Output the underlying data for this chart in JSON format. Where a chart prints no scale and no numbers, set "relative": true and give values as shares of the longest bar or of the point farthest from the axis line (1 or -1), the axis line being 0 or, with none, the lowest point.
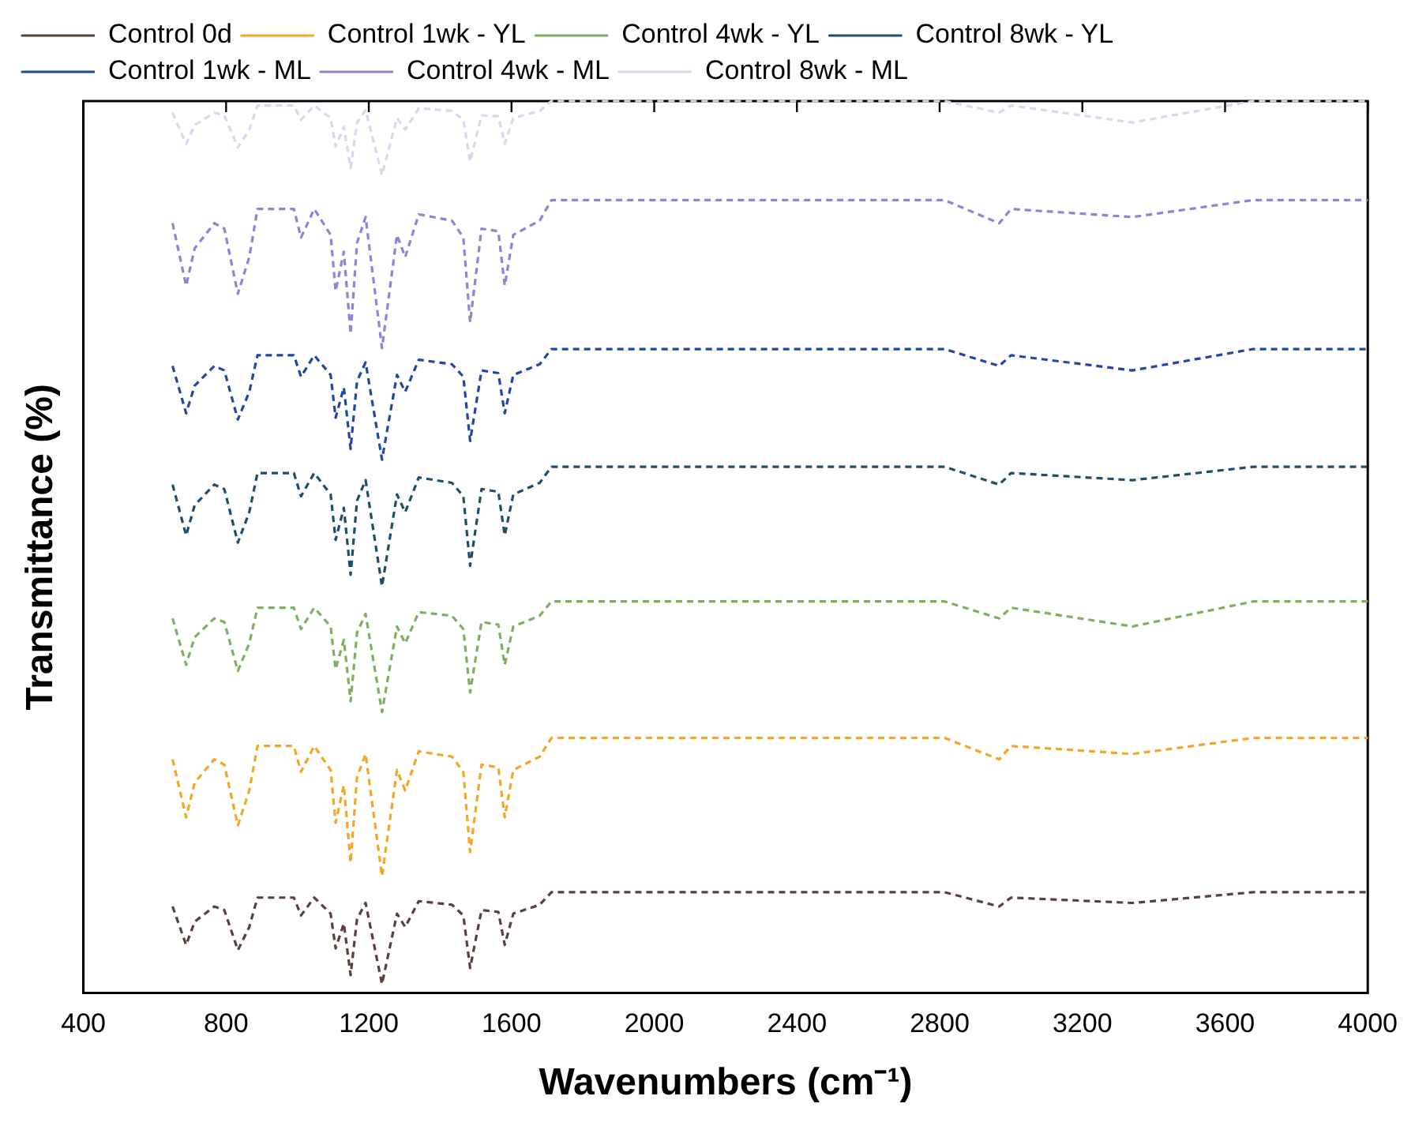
{
  "chart_data": {
    "type": "line",
    "xlabel": "Wavenumbers (cm⁻¹)",
    "ylabel": "Transmittance (%)",
    "relative": true,
    "legend": "top left",
    "line_style": "dashed",
    "marker": "none",
    "xlim": [
      400,
      4000
    ],
    "xticks": [
      400,
      800,
      1200,
      1600,
      2000,
      2400,
      2800,
      3200,
      3600,
      4000
    ],
    "x": [
      650,
      688,
      712,
      767,
      795,
      833,
      865,
      888,
      990,
      1010,
      1047,
      1093,
      1107,
      1130,
      1149,
      1167,
      1191,
      1237,
      1279,
      1302,
      1340,
      1433,
      1465,
      1484,
      1516,
      1563,
      1581,
      1605,
      1679,
      1712,
      1800,
      2400,
      2814,
      2967,
      3000,
      3340,
      3679,
      4000
    ],
    "series": [
      {
        "name": "Control 0d",
        "color": "#5a3f3a",
        "values": [
          0.097,
          0.054,
          0.08,
          0.097,
          0.093,
          0.048,
          0.074,
          0.107,
          0.107,
          0.087,
          0.107,
          0.089,
          0.05,
          0.078,
          0.02,
          0.083,
          0.101,
          0.01,
          0.089,
          0.074,
          0.103,
          0.099,
          0.087,
          0.028,
          0.093,
          0.091,
          0.054,
          0.089,
          0.099,
          0.113,
          0.113,
          0.113,
          0.113,
          0.097,
          0.107,
          0.101,
          0.113,
          0.113
        ]
      },
      {
        "name": "Control 1wk - YL",
        "color": "#f5a623",
        "values": [
          0.262,
          0.197,
          0.236,
          0.262,
          0.256,
          0.188,
          0.227,
          0.277,
          0.277,
          0.248,
          0.277,
          0.25,
          0.191,
          0.233,
          0.146,
          0.242,
          0.268,
          0.131,
          0.25,
          0.227,
          0.271,
          0.265,
          0.248,
          0.158,
          0.256,
          0.253,
          0.197,
          0.25,
          0.265,
          0.286,
          0.286,
          0.286,
          0.286,
          0.262,
          0.277,
          0.268,
          0.286,
          0.286
        ]
      },
      {
        "name": "Control 4wk - YL",
        "color": "#7fae5e",
        "values": [
          0.42,
          0.368,
          0.399,
          0.42,
          0.416,
          0.361,
          0.392,
          0.432,
          0.432,
          0.408,
          0.432,
          0.411,
          0.363,
          0.396,
          0.327,
          0.404,
          0.425,
          0.315,
          0.411,
          0.392,
          0.427,
          0.423,
          0.408,
          0.337,
          0.416,
          0.413,
          0.368,
          0.411,
          0.423,
          0.439,
          0.439,
          0.439,
          0.439,
          0.42,
          0.432,
          0.411,
          0.439,
          0.439
        ]
      },
      {
        "name": "Control 8wk - YL",
        "color": "#1f4e6b",
        "values": [
          0.57,
          0.513,
          0.547,
          0.57,
          0.565,
          0.505,
          0.539,
          0.583,
          0.583,
          0.557,
          0.583,
          0.559,
          0.508,
          0.544,
          0.469,
          0.552,
          0.575,
          0.456,
          0.559,
          0.539,
          0.578,
          0.572,
          0.557,
          0.479,
          0.565,
          0.562,
          0.513,
          0.559,
          0.572,
          0.59,
          0.59,
          0.59,
          0.59,
          0.57,
          0.583,
          0.575,
          0.59,
          0.59
        ]
      },
      {
        "name": "Control 1wk - ML",
        "color": "#1f47a3",
        "values": [
          0.703,
          0.65,
          0.681,
          0.703,
          0.698,
          0.643,
          0.674,
          0.715,
          0.715,
          0.691,
          0.715,
          0.693,
          0.645,
          0.679,
          0.61,
          0.686,
          0.707,
          0.598,
          0.693,
          0.674,
          0.71,
          0.705,
          0.691,
          0.619,
          0.698,
          0.695,
          0.65,
          0.693,
          0.705,
          0.722,
          0.722,
          0.722,
          0.722,
          0.703,
          0.715,
          0.698,
          0.722,
          0.722
        ]
      },
      {
        "name": "Control 4wk - ML",
        "color": "#8d84d6",
        "values": [
          0.863,
          0.793,
          0.835,
          0.863,
          0.857,
          0.784,
          0.825,
          0.879,
          0.879,
          0.847,
          0.879,
          0.85,
          0.787,
          0.831,
          0.739,
          0.841,
          0.87,
          0.723,
          0.85,
          0.825,
          0.873,
          0.866,
          0.847,
          0.752,
          0.857,
          0.854,
          0.793,
          0.85,
          0.866,
          0.889,
          0.889,
          0.889,
          0.889,
          0.863,
          0.879,
          0.87,
          0.889,
          0.889
        ]
      },
      {
        "name": "Control 8wk - ML",
        "color": "#d8d6f0",
        "values": [
          0.987,
          0.952,
          0.973,
          0.987,
          0.984,
          0.948,
          0.968,
          0.995,
          0.995,
          0.979,
          0.995,
          0.981,
          0.949,
          0.971,
          0.925,
          0.976,
          0.99,
          0.917,
          0.981,
          0.968,
          0.992,
          0.989,
          0.979,
          0.932,
          0.984,
          0.983,
          0.952,
          0.981,
          0.989,
          1,
          1,
          1,
          1,
          0.987,
          0.995,
          0.976,
          1,
          1
        ]
      }
    ]
  }
}
